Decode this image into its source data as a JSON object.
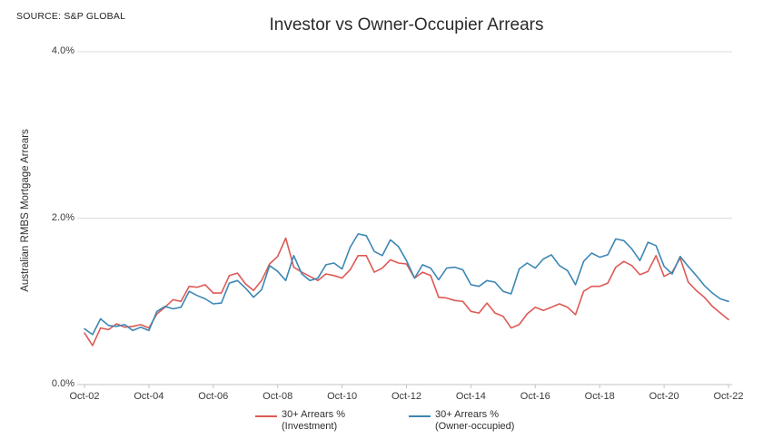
{
  "header": {
    "source": "SOURCE: S&P GLOBAL",
    "title": "Investor vs Owner-Occupier Arrears"
  },
  "y_axis": {
    "title": "Australian RMBS Mortgage Arrears",
    "tick_labels": [
      "4.0%",
      "2.0%",
      "0.0%"
    ],
    "tick_values": [
      4.0,
      2.0,
      0.0
    ]
  },
  "x_axis": {
    "tick_labels": [
      "Oct-02",
      "Oct-04",
      "Oct-06",
      "Oct-08",
      "Oct-10",
      "Oct-12",
      "Oct-14",
      "Oct-16",
      "Oct-18",
      "Oct-20",
      "Oct-22"
    ]
  },
  "legend": {
    "items": [
      {
        "label_line1": "30+ Arrears %",
        "label_line2": "(Investment)",
        "color": "#dd5a55"
      },
      {
        "label_line1": "30+ Arrears %",
        "label_line2": "(Owner-occupied)",
        "color": "#3c87b4"
      }
    ]
  },
  "colors": {
    "investment_line": "#dd5a55",
    "owner_occupied_line": "#3c87b4",
    "gridline": "#dcdcdc",
    "axis_line": "#c4c4c4",
    "text": "#333333"
  },
  "chart_data": {
    "type": "line",
    "title": "Investor vs Owner-Occupier Arrears",
    "xlabel": "",
    "ylabel": "Australian RMBS Mortgage Arrears",
    "unit": "percent",
    "ylim": [
      0,
      4
    ],
    "y_ticks": [
      4.0,
      2.0,
      0.0
    ],
    "grid": "horizontal",
    "legend_position": "bottom",
    "x_tick_labels": [
      "Oct-02",
      "Oct-04",
      "Oct-06",
      "Oct-08",
      "Oct-10",
      "Oct-12",
      "Oct-14",
      "Oct-16",
      "Oct-18",
      "Oct-20",
      "Oct-22"
    ],
    "dates": [
      "Oct-02",
      "Jan-03",
      "Apr-03",
      "Jul-03",
      "Oct-03",
      "Jan-04",
      "Apr-04",
      "Jul-04",
      "Oct-04",
      "Jan-05",
      "Apr-05",
      "Jul-05",
      "Oct-05",
      "Jan-06",
      "Apr-06",
      "Jul-06",
      "Oct-06",
      "Jan-07",
      "Apr-07",
      "Jul-07",
      "Oct-07",
      "Jan-08",
      "Apr-08",
      "Jul-08",
      "Oct-08",
      "Jan-09",
      "Apr-09",
      "Jul-09",
      "Oct-09",
      "Jan-10",
      "Apr-10",
      "Jul-10",
      "Oct-10",
      "Jan-11",
      "Apr-11",
      "Jul-11",
      "Oct-11",
      "Jan-12",
      "Apr-12",
      "Jul-12",
      "Oct-12",
      "Jan-13",
      "Apr-13",
      "Jul-13",
      "Oct-13",
      "Jan-14",
      "Apr-14",
      "Jul-14",
      "Oct-14",
      "Jan-15",
      "Apr-15",
      "Jul-15",
      "Oct-15",
      "Jan-16",
      "Apr-16",
      "Jul-16",
      "Oct-16",
      "Jan-17",
      "Apr-17",
      "Jul-17",
      "Oct-17",
      "Jan-18",
      "Apr-18",
      "Jul-18",
      "Oct-18",
      "Jan-19",
      "Apr-19",
      "Jul-19",
      "Oct-19",
      "Jan-20",
      "Apr-20",
      "Jul-20",
      "Oct-20",
      "Jan-21",
      "Apr-21",
      "Jul-21",
      "Oct-21",
      "Jan-22",
      "Apr-22",
      "Jul-22",
      "Oct-22"
    ],
    "series": [
      {
        "name": "30+ Arrears % (Investment)",
        "color": "#dd5a55",
        "values": [
          0.62,
          0.47,
          0.68,
          0.66,
          0.73,
          0.69,
          0.7,
          0.72,
          0.68,
          0.85,
          0.93,
          1.02,
          1.0,
          1.18,
          1.17,
          1.2,
          1.1,
          1.1,
          1.31,
          1.34,
          1.21,
          1.13,
          1.25,
          1.45,
          1.54,
          1.76,
          1.41,
          1.35,
          1.3,
          1.25,
          1.33,
          1.31,
          1.28,
          1.38,
          1.55,
          1.55,
          1.35,
          1.4,
          1.5,
          1.46,
          1.45,
          1.28,
          1.35,
          1.31,
          1.05,
          1.04,
          1.01,
          1.0,
          0.88,
          0.86,
          0.98,
          0.86,
          0.82,
          0.68,
          0.72,
          0.85,
          0.93,
          0.89,
          0.93,
          0.97,
          0.93,
          0.84,
          1.12,
          1.18,
          1.18,
          1.22,
          1.41,
          1.48,
          1.43,
          1.32,
          1.36,
          1.55,
          1.3,
          1.35,
          1.52,
          1.23,
          1.13,
          1.05,
          0.94,
          0.86,
          0.78
        ]
      },
      {
        "name": "30+ Arrears % (Owner-occupied)",
        "color": "#3c87b4",
        "values": [
          0.67,
          0.6,
          0.79,
          0.71,
          0.7,
          0.72,
          0.65,
          0.69,
          0.65,
          0.88,
          0.94,
          0.91,
          0.93,
          1.12,
          1.07,
          1.03,
          0.97,
          0.98,
          1.22,
          1.25,
          1.16,
          1.05,
          1.14,
          1.43,
          1.36,
          1.25,
          1.55,
          1.33,
          1.25,
          1.28,
          1.44,
          1.46,
          1.39,
          1.65,
          1.81,
          1.79,
          1.6,
          1.55,
          1.74,
          1.66,
          1.49,
          1.28,
          1.44,
          1.4,
          1.26,
          1.4,
          1.41,
          1.38,
          1.2,
          1.18,
          1.25,
          1.23,
          1.12,
          1.09,
          1.39,
          1.46,
          1.4,
          1.51,
          1.56,
          1.43,
          1.37,
          1.2,
          1.48,
          1.58,
          1.53,
          1.56,
          1.75,
          1.73,
          1.63,
          1.49,
          1.71,
          1.67,
          1.42,
          1.33,
          1.54,
          1.42,
          1.31,
          1.19,
          1.1,
          1.03,
          1.0
        ]
      }
    ]
  }
}
